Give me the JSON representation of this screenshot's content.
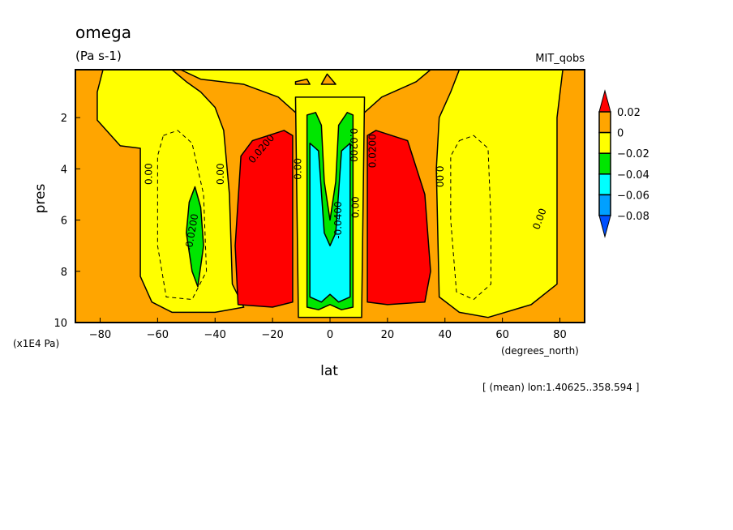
{
  "chart_data": {
    "type": "heatmap",
    "subtype": "filled-contour",
    "title": "omega",
    "units": "(Pa s-1)",
    "dataset": "MIT_qobs",
    "xlabel": "lat",
    "xunits": "(degrees_north)",
    "ylabel": "pres",
    "yunits": "(x1E4 Pa)",
    "footer": "[ (mean) lon:1.40625..358.594 ]",
    "xlim": [
      -88.6,
      88.6
    ],
    "ylim": [
      10,
      0.13
    ],
    "xticks": [
      -80,
      -60,
      -40,
      -20,
      0,
      20,
      40,
      60,
      80
    ],
    "yticks": [
      2,
      4,
      6,
      8,
      10
    ],
    "colorbar": {
      "levels": [
        "0.02",
        "0",
        "-0.02",
        "-0.04",
        "-0.06",
        "-0.08"
      ],
      "colors": [
        "#ff0000",
        "#ffa500",
        "#ffff00",
        "#00e600",
        "#00ffff",
        "#00a0ff",
        "#0050ff"
      ]
    },
    "background_color": "#ffa500",
    "regions": [
      {
        "name": "left-yellow-region",
        "color": "#ffff00",
        "points": [
          [
            -79,
            0.13
          ],
          [
            -55,
            0.13
          ],
          [
            -50,
            0.6
          ],
          [
            -45,
            1.0
          ],
          [
            -40,
            1.6
          ],
          [
            -37,
            2.5
          ],
          [
            -35,
            5
          ],
          [
            -34,
            8.5
          ],
          [
            -30,
            9.4
          ],
          [
            -40,
            9.6
          ],
          [
            -55,
            9.6
          ],
          [
            -62,
            9.2
          ],
          [
            -66,
            8.2
          ],
          [
            -66,
            3.2
          ],
          [
            -73,
            3.1
          ],
          [
            -81,
            2.1
          ],
          [
            -81,
            1.0
          ]
        ]
      },
      {
        "name": "right-yellow-region",
        "color": "#ffff00",
        "points": [
          [
            45,
            0.13
          ],
          [
            81,
            0.13
          ],
          [
            79,
            2
          ],
          [
            79,
            8.5
          ],
          [
            70,
            9.3
          ],
          [
            55,
            9.8
          ],
          [
            45,
            9.6
          ],
          [
            38,
            9
          ],
          [
            37,
            4
          ],
          [
            38,
            2
          ],
          [
            42,
            1
          ]
        ]
      },
      {
        "name": "top-yellow-band",
        "color": "#ffff00",
        "points": [
          [
            -52,
            0.13
          ],
          [
            35,
            0.13
          ],
          [
            30,
            0.6
          ],
          [
            18,
            1.2
          ],
          [
            12,
            1.8
          ],
          [
            -12,
            1.8
          ],
          [
            -18,
            1.2
          ],
          [
            -30,
            0.7
          ],
          [
            -45,
            0.5
          ]
        ]
      },
      {
        "name": "central-yellow-column",
        "color": "#ffff00",
        "points": [
          [
            -12,
            1.2
          ],
          [
            12,
            1.2
          ],
          [
            11,
            9.8
          ],
          [
            -11,
            9.8
          ]
        ]
      },
      {
        "name": "central-green-region",
        "color": "#00e600",
        "points": [
          [
            -8,
            1.9
          ],
          [
            -5,
            1.8
          ],
          [
            -3,
            2.3
          ],
          [
            -2,
            4.5
          ],
          [
            0,
            6.0
          ],
          [
            2,
            4.5
          ],
          [
            3,
            2.3
          ],
          [
            6,
            1.8
          ],
          [
            8,
            1.9
          ],
          [
            8,
            9.4
          ],
          [
            4,
            9.5
          ],
          [
            0,
            9.3
          ],
          [
            -4,
            9.5
          ],
          [
            -8,
            9.4
          ]
        ]
      },
      {
        "name": "central-cyan-region",
        "color": "#00ffff",
        "points": [
          [
            -7,
            3
          ],
          [
            -4,
            3.3
          ],
          [
            -2,
            6.5
          ],
          [
            0,
            7.0
          ],
          [
            2,
            6.5
          ],
          [
            4,
            3.3
          ],
          [
            7,
            3
          ],
          [
            7,
            9.0
          ],
          [
            3,
            9.2
          ],
          [
            0,
            8.9
          ],
          [
            -3,
            9.2
          ],
          [
            -7,
            9.0
          ]
        ]
      },
      {
        "name": "left-red-region",
        "color": "#ff0000",
        "points": [
          [
            -31,
            3.5
          ],
          [
            -27,
            2.9
          ],
          [
            -16,
            2.5
          ],
          [
            -13,
            2.7
          ],
          [
            -13,
            9.2
          ],
          [
            -20,
            9.4
          ],
          [
            -32,
            9.3
          ],
          [
            -33,
            7
          ]
        ]
      },
      {
        "name": "right-red-region",
        "color": "#ff0000",
        "points": [
          [
            13,
            2.7
          ],
          [
            16,
            2.5
          ],
          [
            27,
            2.9
          ],
          [
            33,
            5
          ],
          [
            35,
            8
          ],
          [
            33,
            9.2
          ],
          [
            20,
            9.3
          ],
          [
            13,
            9.2
          ]
        ]
      },
      {
        "name": "left-green-blob",
        "color": "#00e600",
        "points": [
          [
            -47,
            4.7
          ],
          [
            -45,
            5.5
          ],
          [
            -44,
            7
          ],
          [
            -46,
            8.6
          ],
          [
            -48,
            8.0
          ],
          [
            -50,
            6.5
          ],
          [
            -49,
            5.3
          ]
        ]
      },
      {
        "name": "top-orange-blob-left",
        "color": "#ffa500",
        "points": [
          [
            -12,
            0.6
          ],
          [
            -8,
            0.5
          ],
          [
            -7,
            0.7
          ],
          [
            -12,
            0.7
          ]
        ]
      },
      {
        "name": "top-orange-blob-right",
        "color": "#ffa500",
        "points": [
          [
            -3,
            0.7
          ],
          [
            -1,
            0.3
          ],
          [
            2,
            0.7
          ]
        ]
      }
    ],
    "dashed_contours": [
      {
        "name": "left-dashed-contour",
        "points": [
          [
            -58,
            2.7
          ],
          [
            -53,
            2.5
          ],
          [
            -48,
            3
          ],
          [
            -44,
            5
          ],
          [
            -43,
            8
          ],
          [
            -48,
            9.1
          ],
          [
            -57,
            9.0
          ],
          [
            -60,
            7
          ],
          [
            -60,
            3.5
          ]
        ]
      },
      {
        "name": "right-dashed-contour",
        "points": [
          [
            45,
            2.9
          ],
          [
            50,
            2.7
          ],
          [
            55,
            3.2
          ],
          [
            56,
            6
          ],
          [
            56,
            8.5
          ],
          [
            50,
            9.1
          ],
          [
            44,
            8.8
          ],
          [
            42,
            6
          ],
          [
            42,
            3.5
          ]
        ]
      }
    ],
    "labels": [
      {
        "text": "0.00",
        "lat": -62,
        "pres": 4.2,
        "rot": -90
      },
      {
        "text": "-0.0200",
        "lat": -47,
        "pres": 6.5,
        "rot": -80
      },
      {
        "text": "0.00",
        "lat": -37,
        "pres": 4.2,
        "rot": -90
      },
      {
        "text": "0.0200",
        "lat": -23,
        "pres": 3.3,
        "rot": -50
      },
      {
        "text": "0.00",
        "lat": -10,
        "pres": 4.0,
        "rot": -90
      },
      {
        "text": "-0.0200",
        "lat": 7,
        "pres": 3.0,
        "rot": 90
      },
      {
        "text": "-0.0400",
        "lat": 4,
        "pres": 6.0,
        "rot": -90
      },
      {
        "text": "0.00",
        "lat": 10,
        "pres": 5.5,
        "rot": -90
      },
      {
        "text": "0.0200",
        "lat": 16,
        "pres": 3.3,
        "rot": -90
      },
      {
        "text": "0.00",
        "lat": 37,
        "pres": 4.3,
        "rot": 90
      },
      {
        "text": "0.00",
        "lat": 74,
        "pres": 6.0,
        "rot": -70
      }
    ]
  }
}
